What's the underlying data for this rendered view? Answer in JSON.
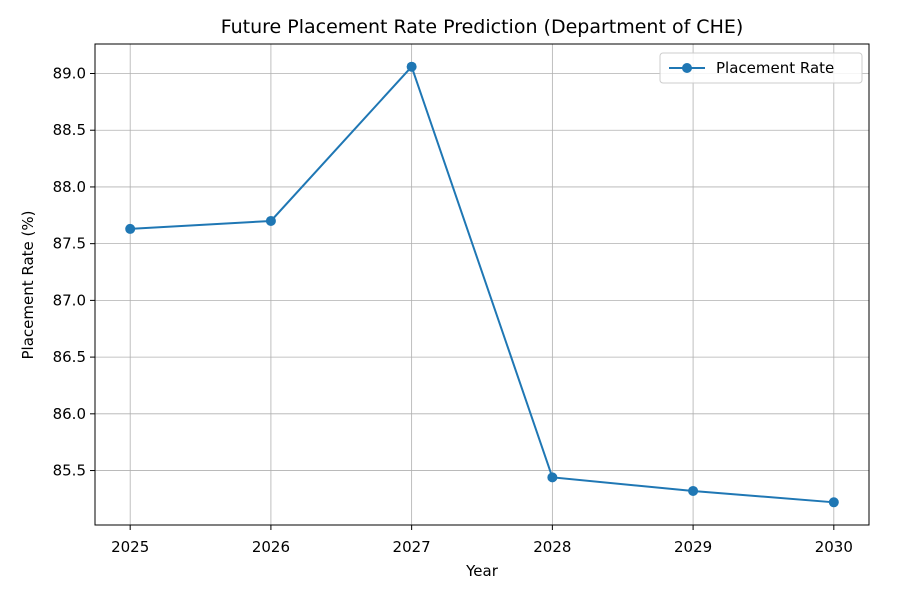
{
  "chart_data": {
    "type": "line",
    "title": "Future Placement Rate Prediction (Department of CHE)",
    "xlabel": "Year",
    "ylabel": "Placement Rate (%)",
    "x": [
      2025,
      2026,
      2027,
      2028,
      2029,
      2030
    ],
    "x_tick_labels": [
      "2025",
      "2026",
      "2027",
      "2028",
      "2029",
      "2030"
    ],
    "y_ticks": [
      85.5,
      86.0,
      86.5,
      87.0,
      87.5,
      88.0,
      88.5,
      89.0
    ],
    "y_tick_labels": [
      "85.5",
      "86.0",
      "86.5",
      "87.0",
      "87.5",
      "88.0",
      "88.5",
      "89.0"
    ],
    "xlim": [
      2024.75,
      2030.25
    ],
    "ylim": [
      85.02,
      89.26
    ],
    "grid": true,
    "legend_position": "top-right",
    "series": [
      {
        "name": "Placement Rate",
        "color": "#1f77b4",
        "marker": "circle",
        "values": [
          87.63,
          87.7,
          89.06,
          85.44,
          85.32,
          85.22
        ]
      }
    ]
  }
}
